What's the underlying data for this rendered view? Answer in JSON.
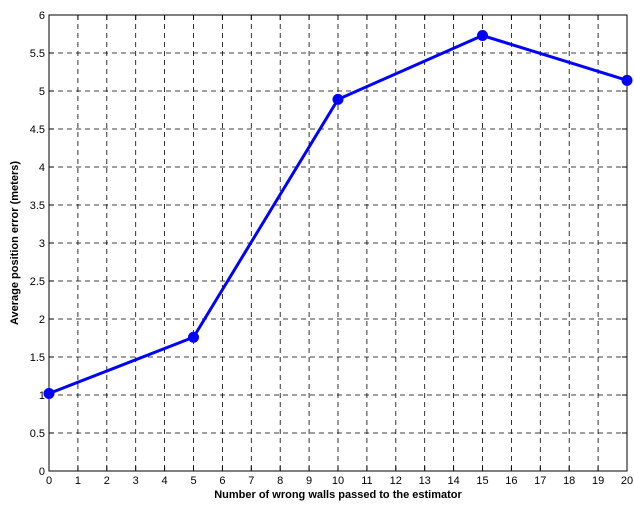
{
  "chart_data": {
    "type": "line",
    "title": "",
    "xlabel": "Number of wrong walls passed to the estimator",
    "ylabel": "Average position error (meters)",
    "xlim": [
      0,
      20
    ],
    "ylim": [
      0,
      6
    ],
    "xticks": [
      "0",
      "1",
      "2",
      "3",
      "4",
      "5",
      "6",
      "7",
      "8",
      "9",
      "10",
      "11",
      "12",
      "13",
      "14",
      "15",
      "16",
      "17",
      "18",
      "19",
      "20"
    ],
    "yticks": [
      "0",
      "0.5",
      "1",
      "1.5",
      "2",
      "2.5",
      "3",
      "3.5",
      "4",
      "4.5",
      "5",
      "5.5",
      "6"
    ],
    "grid": true,
    "grid_style": "dashed",
    "series": [
      {
        "x": [
          0,
          5,
          10,
          15,
          20
        ],
        "values": [
          1.02,
          1.76,
          4.89,
          5.73,
          5.14
        ],
        "color": "#0000ff",
        "marker": "circle"
      }
    ]
  }
}
